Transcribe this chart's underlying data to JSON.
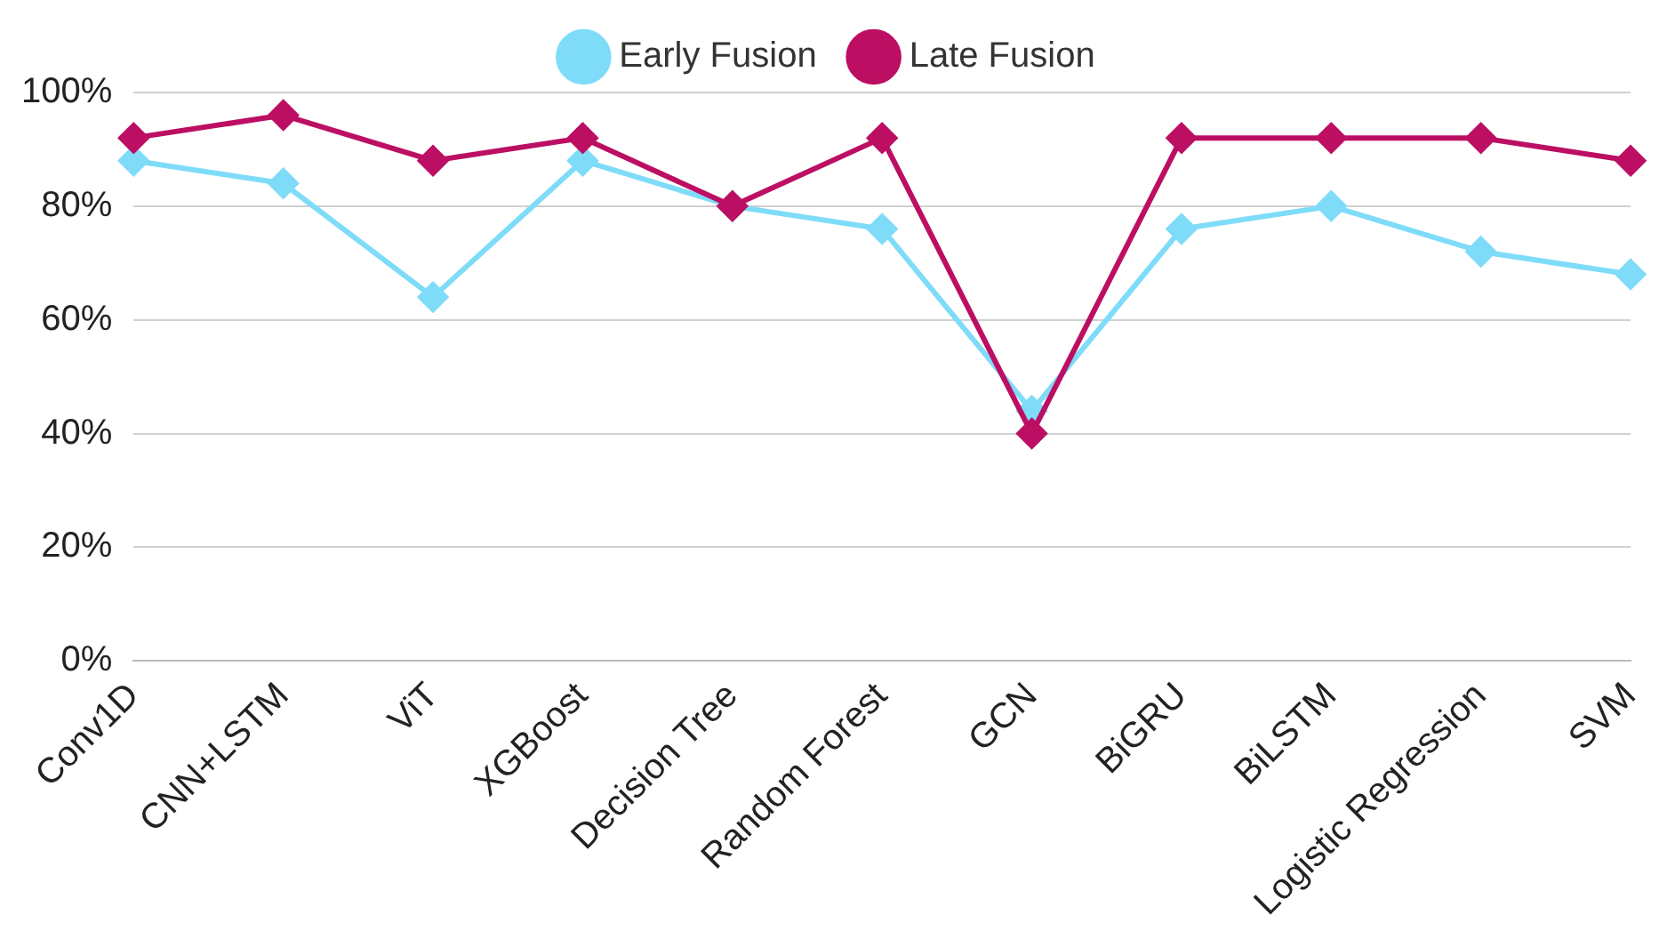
{
  "chart_data": {
    "type": "line",
    "categories": [
      "Conv1D",
      "CNN+LSTM",
      "ViT",
      "XGBoost",
      "Decision Tree",
      "Random Forest",
      "GCN",
      "BiGRU",
      "BiLSTM",
      "Logistic Regression",
      "SVM"
    ],
    "series": [
      {
        "name": "Early Fusion",
        "color": "#7fdcf9",
        "values": [
          88,
          84,
          64,
          88,
          80,
          76,
          44,
          76,
          80,
          72,
          68
        ]
      },
      {
        "name": "Late Fusion",
        "color": "#bc0f63",
        "values": [
          92,
          96,
          88,
          92,
          80,
          92,
          40,
          92,
          92,
          92,
          88
        ]
      }
    ],
    "ylim": [
      0,
      100
    ],
    "yticks": [
      {
        "value": 0,
        "label": "0%"
      },
      {
        "value": 20,
        "label": "20%"
      },
      {
        "value": 40,
        "label": "40%"
      },
      {
        "value": 60,
        "label": "60%"
      },
      {
        "value": 80,
        "label": "80%"
      },
      {
        "value": 100,
        "label": "100%"
      }
    ],
    "grid": "y",
    "legend": "top",
    "marker": "diamond",
    "line_style": "solid"
  }
}
